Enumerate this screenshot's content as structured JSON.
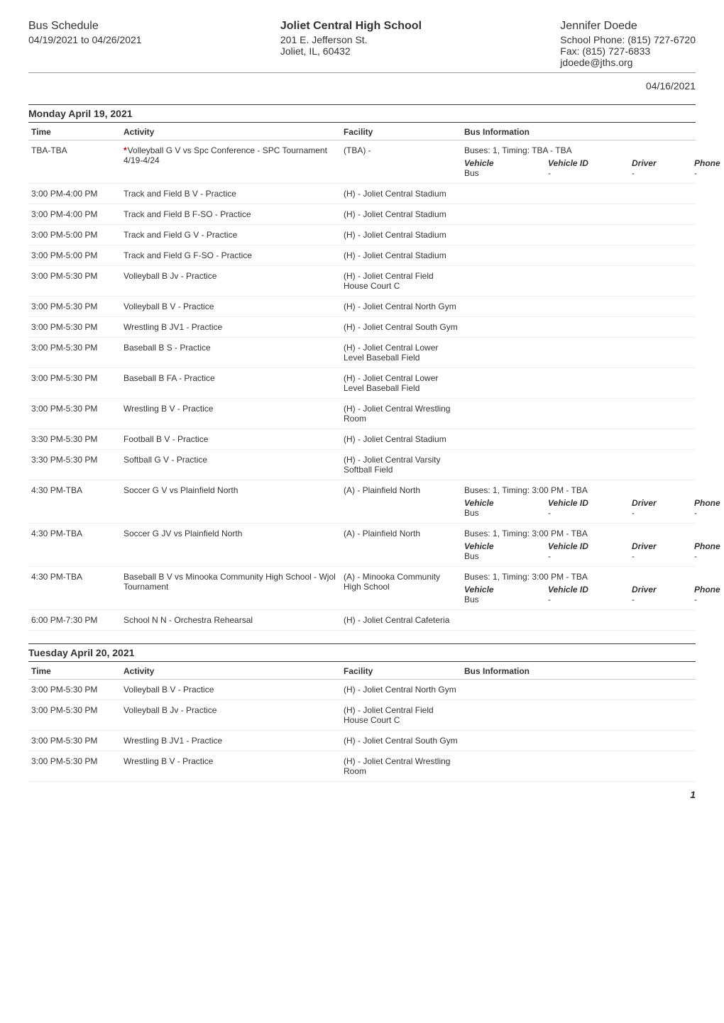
{
  "header": {
    "left_title": "Bus Schedule",
    "left_daterange": "04/19/2021 to 04/26/2021",
    "center_title": "Joliet Central High School",
    "center_addr1": "201 E. Jefferson St.",
    "center_addr2": "Joliet, IL, 60432",
    "right_name": "Jennifer Doede",
    "right_phone": "School Phone: (815) 727-6720",
    "right_fax": "Fax: (815) 727-6833",
    "right_email": "jdoede@jths.org",
    "generated_date": "04/16/2021"
  },
  "columns": {
    "time": "Time",
    "activity": "Activity",
    "facility": "Facility",
    "bus_info": "Bus Information"
  },
  "bus_columns": {
    "vehicle": "Vehicle",
    "vehicle_id": "Vehicle ID",
    "driver": "Driver",
    "phone": "Phone"
  },
  "days": [
    {
      "heading": "Monday April 19, 2021",
      "rows": [
        {
          "time": "TBA-TBA",
          "activity_star": true,
          "activity": "Volleyball G V vs Spc Conference - SPC Tournament 4/19-4/24",
          "facility": "(TBA) -",
          "bus": {
            "line1": "Buses: 1, Timing: TBA - TBA",
            "vehicle": "Bus",
            "vehicle_id": "-",
            "driver": "-",
            "phone": "-"
          }
        },
        {
          "time": "3:00 PM-4:00 PM",
          "activity": "Track and Field B V - Practice",
          "facility": "(H) - Joliet Central Stadium"
        },
        {
          "time": "3:00 PM-4:00 PM",
          "activity": "Track and Field B F-SO - Practice",
          "facility": "(H) - Joliet Central Stadium"
        },
        {
          "time": "3:00 PM-5:00 PM",
          "activity": "Track and Field G V - Practice",
          "facility": "(H) - Joliet Central Stadium"
        },
        {
          "time": "3:00 PM-5:00 PM",
          "activity": "Track and Field G F-SO - Practice",
          "facility": "(H) - Joliet Central Stadium"
        },
        {
          "time": "3:00 PM-5:30 PM",
          "activity": "Volleyball B Jv - Practice",
          "facility": "(H) - Joliet Central Field House Court C"
        },
        {
          "time": "3:00 PM-5:30 PM",
          "activity": "Volleyball B V - Practice",
          "facility": "(H) - Joliet Central North Gym"
        },
        {
          "time": "3:00 PM-5:30 PM",
          "activity": "Wrestling B JV1 - Practice",
          "facility": "(H) - Joliet Central South Gym"
        },
        {
          "time": "3:00 PM-5:30 PM",
          "activity": "Baseball B S - Practice",
          "facility": "(H) - Joliet Central Lower Level Baseball Field"
        },
        {
          "time": "3:00 PM-5:30 PM",
          "activity": "Baseball B FA - Practice",
          "facility": "(H) - Joliet Central Lower Level Baseball Field"
        },
        {
          "time": "3:00 PM-5:30 PM",
          "activity": "Wrestling B V - Practice",
          "facility": "(H) - Joliet Central Wrestling Room"
        },
        {
          "time": "3:30 PM-5:30 PM",
          "activity": "Football B V - Practice",
          "facility": "(H) - Joliet Central Stadium"
        },
        {
          "time": "3:30 PM-5:30 PM",
          "activity": "Softball G V - Practice",
          "facility": "(H) - Joliet Central Varsity Softball Field"
        },
        {
          "time": "4:30 PM-TBA",
          "activity": "Soccer G V vs Plainfield North",
          "facility": "(A) - Plainfield North",
          "bus": {
            "line1": "Buses: 1, Timing: 3:00 PM - TBA",
            "vehicle": "Bus",
            "vehicle_id": "-",
            "driver": "-",
            "phone": "-"
          }
        },
        {
          "time": "4:30 PM-TBA",
          "activity": "Soccer G JV vs Plainfield North",
          "facility": "(A) - Plainfield North",
          "bus": {
            "line1": "Buses: 1, Timing: 3:00 PM - TBA",
            "vehicle": "Bus",
            "vehicle_id": "-",
            "driver": "-",
            "phone": "-"
          }
        },
        {
          "time": "4:30 PM-TBA",
          "activity": "Baseball B V vs Minooka Community High School - Wjol Tournament",
          "facility": "(A) - Minooka Community High School",
          "bus": {
            "line1": "Buses: 1, Timing: 3:00 PM - TBA",
            "vehicle": "Bus",
            "vehicle_id": "-",
            "driver": "-",
            "phone": "-"
          }
        },
        {
          "time": "6:00 PM-7:30 PM",
          "activity": "School N N - Orchestra Rehearsal",
          "facility": "(H) - Joliet Central Cafeteria"
        }
      ]
    },
    {
      "heading": "Tuesday April 20, 2021",
      "rows": [
        {
          "time": "3:00 PM-5:30 PM",
          "activity": "Volleyball B V - Practice",
          "facility": "(H) - Joliet Central North Gym"
        },
        {
          "time": "3:00 PM-5:30 PM",
          "activity": "Volleyball B Jv - Practice",
          "facility": "(H) - Joliet Central Field House Court C"
        },
        {
          "time": "3:00 PM-5:30 PM",
          "activity": "Wrestling B JV1 - Practice",
          "facility": "(H) - Joliet Central South Gym"
        },
        {
          "time": "3:00 PM-5:30 PM",
          "activity": "Wrestling B V - Practice",
          "facility": "(H) - Joliet Central Wrestling Room"
        }
      ]
    }
  ],
  "page_number": "1"
}
